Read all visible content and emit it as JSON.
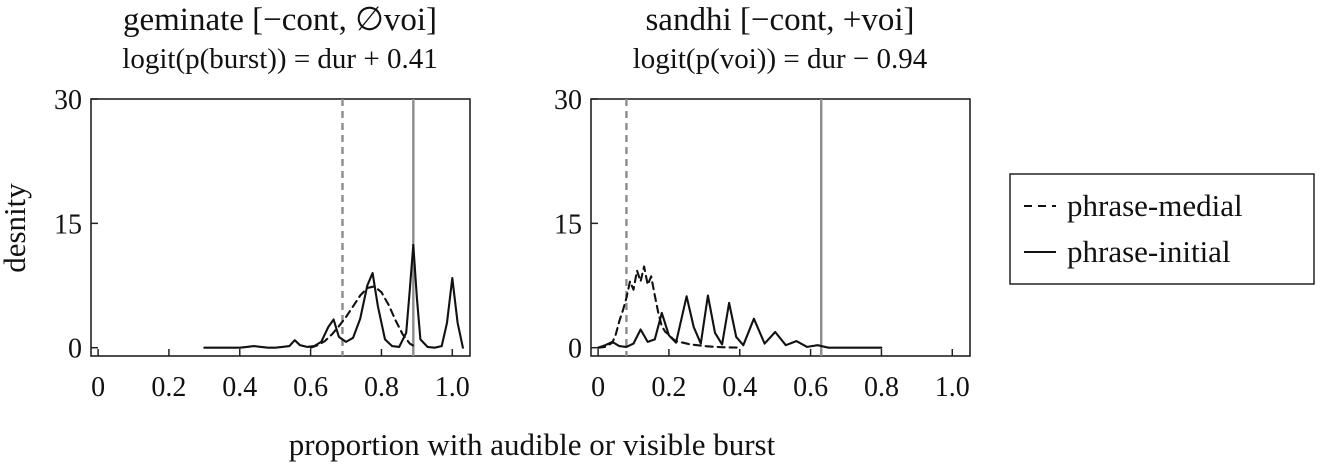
{
  "chart_data": {
    "type": "line",
    "xlabel": "proportion with audible or visible burst",
    "ylabel": "desnity",
    "xlim": [
      -0.02,
      1.05
    ],
    "ylim": [
      -1,
      30
    ],
    "xticks": [
      0,
      0.2,
      0.4,
      0.6,
      0.8,
      1.0
    ],
    "xtick_labels": [
      "0",
      "0.2",
      "0.4",
      "0.6",
      "0.8",
      "1.0"
    ],
    "yticks": [
      0,
      15,
      30
    ],
    "ytick_labels": [
      "0",
      "15",
      "30"
    ],
    "legend": {
      "placement": "right",
      "entries": [
        {
          "label": "phrase-medial",
          "style": "dashed"
        },
        {
          "label": "phrase-initial",
          "style": "solid"
        }
      ]
    },
    "panels": [
      {
        "title": "geminate [−cont, ∅voi]",
        "subtitle": "logit(p(burst)) = dur + 0.41",
        "vlines": [
          {
            "x": 0.69,
            "style": "dashed",
            "series": "phrase-medial"
          },
          {
            "x": 0.89,
            "style": "solid",
            "series": "phrase-initial"
          }
        ],
        "series": [
          {
            "name": "phrase-medial",
            "style": "dashed",
            "x": [
              0.6,
              0.62,
              0.64,
              0.66,
              0.68,
              0.7,
              0.72,
              0.74,
              0.76,
              0.78,
              0.8,
              0.82,
              0.84,
              0.86,
              0.88,
              0.9
            ],
            "y": [
              0.0,
              0.3,
              0.8,
              1.6,
              2.6,
              3.7,
              5.0,
              6.3,
              7.2,
              7.4,
              6.7,
              5.2,
              3.3,
              1.6,
              0.5,
              0.0
            ]
          },
          {
            "name": "phrase-initial",
            "style": "solid",
            "x": [
              0.3,
              0.32,
              0.34,
              0.36,
              0.38,
              0.4,
              0.42,
              0.44,
              0.46,
              0.48,
              0.5,
              0.52,
              0.54,
              0.555,
              0.57,
              0.59,
              0.61,
              0.63,
              0.65,
              0.665,
              0.68,
              0.7,
              0.72,
              0.74,
              0.76,
              0.775,
              0.79,
              0.81,
              0.83,
              0.85,
              0.87,
              0.88,
              0.89,
              0.9,
              0.91,
              0.93,
              0.95,
              0.97,
              0.985,
              1.0,
              1.015,
              1.03
            ],
            "y": [
              0.0,
              0.0,
              0.0,
              0.0,
              0.0,
              0.0,
              0.1,
              0.2,
              0.1,
              0.0,
              0.0,
              0.1,
              0.2,
              0.9,
              0.3,
              0.1,
              0.2,
              0.7,
              2.5,
              3.4,
              1.3,
              0.7,
              1.2,
              3.5,
              7.5,
              9.0,
              5.0,
              1.0,
              0.2,
              0.1,
              1.8,
              7.0,
              12.4,
              6.0,
              1.0,
              0.1,
              0.0,
              0.2,
              3.0,
              8.4,
              3.0,
              0.0
            ]
          }
        ]
      },
      {
        "title": "sandhi [−cont, +voi]",
        "subtitle": "logit(p(voi)) = dur − 0.94",
        "vlines": [
          {
            "x": 0.08,
            "style": "dashed",
            "series": "phrase-medial"
          },
          {
            "x": 0.63,
            "style": "solid",
            "series": "phrase-initial"
          }
        ],
        "series": [
          {
            "name": "phrase-medial",
            "style": "dashed",
            "x": [
              0.0,
              0.02,
              0.04,
              0.05,
              0.06,
              0.07,
              0.08,
              0.09,
              0.1,
              0.11,
              0.12,
              0.13,
              0.14,
              0.15,
              0.16,
              0.17,
              0.18,
              0.19,
              0.2,
              0.21,
              0.22,
              0.24,
              0.26,
              0.28,
              0.3,
              0.33,
              0.36,
              0.4
            ],
            "y": [
              0.0,
              0.1,
              0.6,
              1.6,
              3.2,
              4.5,
              6.0,
              8.0,
              7.0,
              9.3,
              8.0,
              9.8,
              7.6,
              8.6,
              6.3,
              4.2,
              2.6,
              1.9,
              1.6,
              1.1,
              0.8,
              0.6,
              0.4,
              0.3,
              0.2,
              0.1,
              0.05,
              0.0
            ]
          },
          {
            "name": "phrase-initial",
            "style": "solid",
            "x": [
              0.0,
              0.02,
              0.04,
              0.06,
              0.08,
              0.1,
              0.12,
              0.14,
              0.16,
              0.18,
              0.2,
              0.22,
              0.25,
              0.27,
              0.29,
              0.31,
              0.33,
              0.35,
              0.37,
              0.39,
              0.41,
              0.44,
              0.47,
              0.5,
              0.53,
              0.56,
              0.59,
              0.62,
              0.65,
              0.7,
              0.75,
              0.8
            ],
            "y": [
              0.0,
              0.3,
              0.7,
              0.2,
              0.1,
              0.5,
              2.2,
              0.7,
              1.0,
              4.2,
              1.5,
              0.6,
              6.2,
              2.5,
              0.5,
              6.3,
              1.8,
              0.4,
              5.4,
              1.3,
              0.3,
              3.5,
              0.5,
              1.9,
              0.3,
              0.8,
              0.1,
              0.3,
              0.0,
              0.0,
              0.0,
              0.0
            ]
          }
        ]
      }
    ]
  }
}
